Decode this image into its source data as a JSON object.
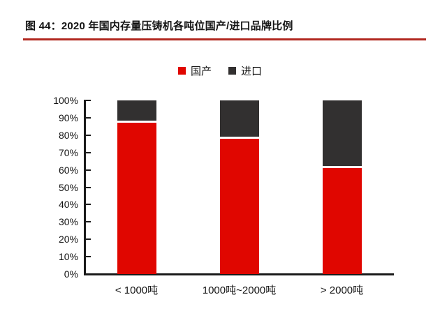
{
  "figure": {
    "title": "图 44：2020 年国内存量压铸机各吨位国产/进口品牌比例"
  },
  "colors": {
    "domestic_red": "#e00600",
    "import_dark": "#323030",
    "axis": "#1a1a1a",
    "title_rule_red": "#b1271f",
    "text": "#141414"
  },
  "legend": {
    "items": [
      {
        "label": "国产",
        "swatch_color": "#e00600"
      },
      {
        "label": "进口",
        "swatch_color": "#323030"
      }
    ]
  },
  "chart_data": {
    "type": "bar",
    "stacked": true,
    "title": "2020 年国内存量压铸机各吨位国产/进口品牌比例",
    "categories": [
      "< 1000吨",
      "1000吨~2000吨",
      "> 2000吨"
    ],
    "series": [
      {
        "name": "国产",
        "color": "#e00600",
        "values": [
          87,
          78,
          61
        ]
      },
      {
        "name": "进口",
        "color": "#323030",
        "values": [
          13,
          22,
          39
        ]
      }
    ],
    "unit": "%",
    "xlabel": "",
    "ylabel": "",
    "ylim": [
      0,
      100
    ],
    "yticks": [
      "0%",
      "10%",
      "20%",
      "30%",
      "40%",
      "50%",
      "60%",
      "70%",
      "80%",
      "90%",
      "100%"
    ],
    "legend_position": "top-center",
    "grid": false
  }
}
